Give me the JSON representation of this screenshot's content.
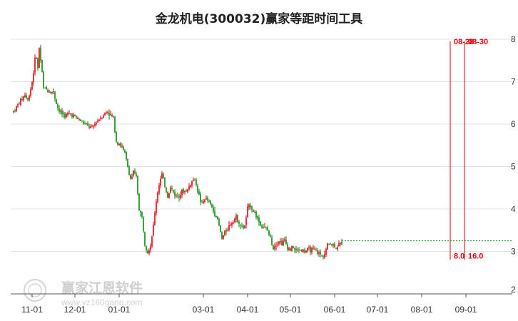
{
  "chart_data": {
    "type": "candlestick",
    "title": "金龙机电(300032)赢家等距时间工具",
    "xlabel": "",
    "ylabel": "",
    "ylim": [
      2,
      8
    ],
    "yticks": [
      "2",
      "3",
      "4",
      "5",
      "6",
      "7",
      "8"
    ],
    "xticks": [
      {
        "label": "11-01",
        "day": 13
      },
      {
        "label": "12-01",
        "day": 43
      },
      {
        "label": "01-01",
        "day": 74
      },
      {
        "label": "03-01",
        "day": 133
      },
      {
        "label": "04-01",
        "day": 164
      },
      {
        "label": "05-01",
        "day": 194
      },
      {
        "label": "06-01",
        "day": 225
      },
      {
        "label": "07-01",
        "day": 255
      },
      {
        "label": "08-01",
        "day": 286
      },
      {
        "label": "09-01",
        "day": 317
      }
    ],
    "up_color": "#e8000b",
    "down_color": "#0a8a0a",
    "price_path": [
      [
        0,
        6.3
      ],
      [
        4,
        6.5
      ],
      [
        8,
        6.7
      ],
      [
        10,
        6.55
      ],
      [
        13,
        7.0
      ],
      [
        15,
        7.5
      ],
      [
        16,
        7.6
      ],
      [
        17,
        7.3
      ],
      [
        18,
        7.8
      ],
      [
        20,
        7.2
      ],
      [
        21,
        6.85
      ],
      [
        24,
        6.8
      ],
      [
        28,
        6.75
      ],
      [
        30,
        6.5
      ],
      [
        32,
        6.3
      ],
      [
        36,
        6.2
      ],
      [
        40,
        6.25
      ],
      [
        44,
        6.15
      ],
      [
        48,
        6.05
      ],
      [
        52,
        5.95
      ],
      [
        55,
        5.9
      ],
      [
        58,
        6.05
      ],
      [
        62,
        6.2
      ],
      [
        66,
        6.3
      ],
      [
        68,
        6.2
      ],
      [
        70,
        6.15
      ],
      [
        72,
        5.6
      ],
      [
        74,
        5.55
      ],
      [
        76,
        5.45
      ],
      [
        78,
        5.3
      ],
      [
        80,
        5.0
      ],
      [
        82,
        4.7
      ],
      [
        84,
        4.85
      ],
      [
        86,
        4.75
      ],
      [
        88,
        4.0
      ],
      [
        90,
        3.8
      ],
      [
        92,
        3.2
      ],
      [
        94,
        3.0
      ],
      [
        96,
        3.15
      ],
      [
        98,
        3.6
      ],
      [
        100,
        4.2
      ],
      [
        102,
        4.6
      ],
      [
        104,
        4.8
      ],
      [
        106,
        4.55
      ],
      [
        108,
        4.3
      ],
      [
        110,
        4.5
      ],
      [
        112,
        4.4
      ],
      [
        114,
        4.3
      ],
      [
        118,
        4.4
      ],
      [
        122,
        4.45
      ],
      [
        124,
        4.6
      ],
      [
        126,
        4.7
      ],
      [
        128,
        4.6
      ],
      [
        130,
        4.3
      ],
      [
        132,
        4.1
      ],
      [
        134,
        4.25
      ],
      [
        136,
        4.2
      ],
      [
        138,
        4.1
      ],
      [
        140,
        3.95
      ],
      [
        142,
        3.85
      ],
      [
        144,
        3.6
      ],
      [
        146,
        3.3
      ],
      [
        148,
        3.45
      ],
      [
        150,
        3.55
      ],
      [
        152,
        3.65
      ],
      [
        154,
        3.75
      ],
      [
        156,
        3.8
      ],
      [
        158,
        3.7
      ],
      [
        160,
        3.55
      ],
      [
        162,
        3.6
      ],
      [
        164,
        4.0
      ],
      [
        166,
        4.1
      ],
      [
        168,
        3.95
      ],
      [
        170,
        3.85
      ],
      [
        172,
        3.7
      ],
      [
        174,
        3.6
      ],
      [
        176,
        3.55
      ],
      [
        178,
        3.5
      ],
      [
        180,
        3.3
      ],
      [
        182,
        3.1
      ],
      [
        184,
        3.2
      ],
      [
        186,
        3.25
      ],
      [
        188,
        3.2
      ],
      [
        190,
        3.25
      ],
      [
        192,
        3.1
      ],
      [
        194,
        3.05
      ],
      [
        196,
        3.1
      ],
      [
        198,
        3.0
      ],
      [
        200,
        3.05
      ],
      [
        204,
        3.0
      ],
      [
        208,
        3.05
      ],
      [
        212,
        3.0
      ],
      [
        214,
        2.95
      ],
      [
        216,
        2.9
      ],
      [
        218,
        2.95
      ],
      [
        220,
        3.15
      ],
      [
        222,
        3.2
      ],
      [
        224,
        3.15
      ],
      [
        226,
        3.1
      ],
      [
        228,
        3.15
      ],
      [
        230,
        3.2
      ]
    ],
    "annotations": [
      {
        "date_label": "08-28",
        "count_label": "8.0",
        "day": 306
      },
      {
        "date_label": "08-30",
        "count_label": "16.0",
        "day": 316
      }
    ],
    "reference_line_value": 3.25,
    "watermark": {
      "name": "赢家江恩软件",
      "url": "www.yz160gann.com"
    }
  }
}
